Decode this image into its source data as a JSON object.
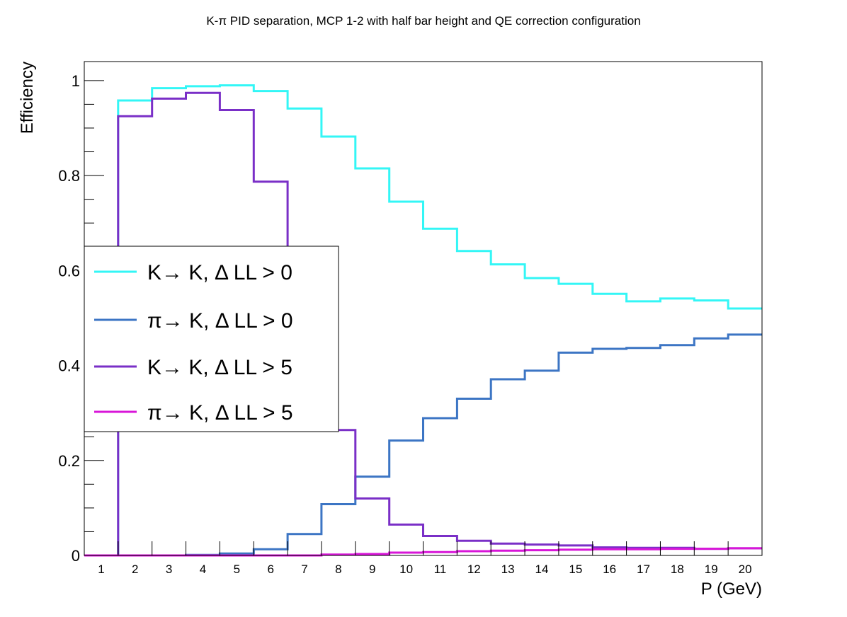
{
  "chart_data": {
    "type": "line",
    "title": "K-π PID separation, MCP 1-2 with half bar height and QE correction configuration",
    "xlabel": "P (GeV)",
    "ylabel": "Efficiency",
    "xlim": [
      0.5,
      20.5
    ],
    "ylim": [
      0,
      1.04
    ],
    "categories": [
      "1",
      "2",
      "3",
      "4",
      "5",
      "6",
      "7",
      "8",
      "9",
      "10",
      "11",
      "12",
      "13",
      "14",
      "15",
      "16",
      "17",
      "18",
      "19",
      "20"
    ],
    "yticks": [
      {
        "value": 0,
        "label": "0"
      },
      {
        "value": 0.2,
        "label": "0.2"
      },
      {
        "value": 0.4,
        "label": "0.4"
      },
      {
        "value": 0.6,
        "label": "0.6"
      },
      {
        "value": 0.8,
        "label": "0.8"
      },
      {
        "value": 1,
        "label": "1"
      }
    ],
    "grid": false,
    "legend_position": "left-middle",
    "series": [
      {
        "name": "K→ K, Δ LL > 0",
        "color": "#33f6f6",
        "values": [
          0.0,
          0.958,
          0.984,
          0.988,
          0.99,
          0.978,
          0.941,
          0.882,
          0.815,
          0.745,
          0.688,
          0.641,
          0.613,
          0.584,
          0.572,
          0.551,
          0.535,
          0.541,
          0.537,
          0.52
        ]
      },
      {
        "name": "π→ K, Δ LL > 0",
        "color": "#3c75c4",
        "values": [
          0.0,
          0.0,
          0.0,
          0.001,
          0.004,
          0.013,
          0.045,
          0.108,
          0.166,
          0.242,
          0.289,
          0.33,
          0.371,
          0.389,
          0.427,
          0.435,
          0.437,
          0.443,
          0.457,
          0.465
        ]
      },
      {
        "name": "K→ K, Δ LL > 5",
        "color": "#7a2fc7",
        "values": [
          0.0,
          0.925,
          0.962,
          0.974,
          0.938,
          0.787,
          0.62,
          0.264,
          0.12,
          0.065,
          0.041,
          0.031,
          0.025,
          0.023,
          0.021,
          0.017,
          0.016,
          0.016,
          0.014,
          0.015
        ]
      },
      {
        "name": "π→ K, Δ LL > 5",
        "color": "#d816d8",
        "values": [
          0.0,
          0.0,
          0.0,
          0.0,
          0.0,
          0.0,
          0.0,
          0.002,
          0.003,
          0.006,
          0.007,
          0.009,
          0.01,
          0.011,
          0.012,
          0.013,
          0.013,
          0.014,
          0.014,
          0.015
        ]
      }
    ]
  }
}
